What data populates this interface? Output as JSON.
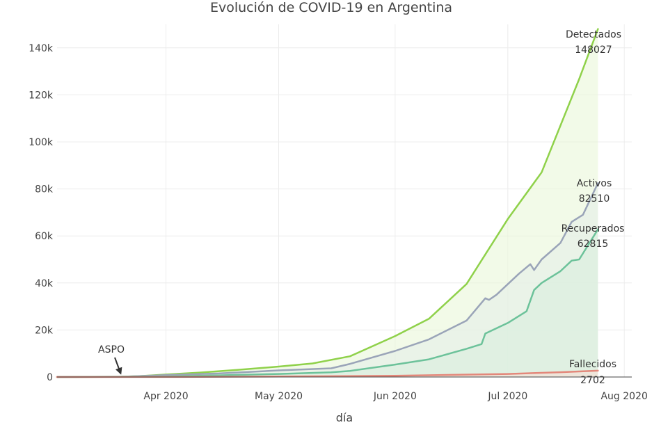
{
  "chart_data": {
    "type": "area",
    "title": "Evolución de COVID-19 en Argentina",
    "xlabel": "día",
    "ylabel": "",
    "xlim": [
      "2020-03-03",
      "2020-08-03"
    ],
    "ylim": [
      0,
      150000
    ],
    "x_ticks": [
      {
        "date": "2020-04-01",
        "label": "Apr 2020"
      },
      {
        "date": "2020-05-01",
        "label": "May 2020"
      },
      {
        "date": "2020-06-01",
        "label": "Jun 2020"
      },
      {
        "date": "2020-07-01",
        "label": "Jul 2020"
      },
      {
        "date": "2020-08-01",
        "label": "Aug 2020"
      }
    ],
    "y_ticks": [
      {
        "value": 0,
        "label": "0"
      },
      {
        "value": 20000,
        "label": "20k"
      },
      {
        "value": 40000,
        "label": "40k"
      },
      {
        "value": 60000,
        "label": "60k"
      },
      {
        "value": 80000,
        "label": "80k"
      },
      {
        "value": 100000,
        "label": "100k"
      },
      {
        "value": 120000,
        "label": "120k"
      },
      {
        "value": 140000,
        "label": "140k"
      }
    ],
    "grid": true,
    "series": [
      {
        "name": "Detectados",
        "color": "#8fd14a",
        "fill": "#eaf6d8",
        "final_value_label": "148027",
        "points": [
          [
            "2020-03-03",
            1
          ],
          [
            "2020-03-10",
            17
          ],
          [
            "2020-03-20",
            128
          ],
          [
            "2020-03-25",
            387
          ],
          [
            "2020-04-01",
            1054
          ],
          [
            "2020-04-10",
            1894
          ],
          [
            "2020-04-20",
            3031
          ],
          [
            "2020-05-01",
            4428
          ],
          [
            "2020-05-10",
            5776
          ],
          [
            "2020-05-20",
            8809
          ],
          [
            "2020-06-01",
            17415
          ],
          [
            "2020-06-10",
            24761
          ],
          [
            "2020-06-20",
            39570
          ],
          [
            "2020-07-01",
            67184
          ],
          [
            "2020-07-10",
            87030
          ],
          [
            "2020-07-20",
            126755
          ],
          [
            "2020-07-25",
            148027
          ]
        ]
      },
      {
        "name": "Activos",
        "color": "#9aa4b8",
        "fill": "#e4eee8",
        "final_value_label": "82510",
        "points": [
          [
            "2020-03-03",
            1
          ],
          [
            "2020-03-20",
            120
          ],
          [
            "2020-04-01",
            800
          ],
          [
            "2020-04-15",
            1500
          ],
          [
            "2020-05-01",
            2800
          ],
          [
            "2020-05-15",
            3700
          ],
          [
            "2020-05-20",
            5600
          ],
          [
            "2020-06-01",
            11100
          ],
          [
            "2020-06-10",
            16000
          ],
          [
            "2020-06-20",
            24000
          ],
          [
            "2020-06-25",
            33500
          ],
          [
            "2020-06-26",
            32800
          ],
          [
            "2020-06-28",
            35000
          ],
          [
            "2020-07-04",
            44000
          ],
          [
            "2020-07-07",
            48000
          ],
          [
            "2020-07-08",
            45500
          ],
          [
            "2020-07-10",
            50000
          ],
          [
            "2020-07-15",
            57000
          ],
          [
            "2020-07-18",
            66000
          ],
          [
            "2020-07-21",
            69000
          ],
          [
            "2020-07-25",
            82510
          ]
        ]
      },
      {
        "name": "Recuperados",
        "color": "#6cc29a",
        "fill": "#d9eedd",
        "final_value_label": "62815",
        "points": [
          [
            "2020-03-03",
            0
          ],
          [
            "2020-04-01",
            240
          ],
          [
            "2020-04-15",
            700
          ],
          [
            "2020-05-01",
            1300
          ],
          [
            "2020-05-15",
            2000
          ],
          [
            "2020-05-20",
            2600
          ],
          [
            "2020-06-01",
            5300
          ],
          [
            "2020-06-10",
            7500
          ],
          [
            "2020-06-20",
            12000
          ],
          [
            "2020-06-24",
            14000
          ],
          [
            "2020-06-25",
            18500
          ],
          [
            "2020-07-01",
            23000
          ],
          [
            "2020-07-06",
            28000
          ],
          [
            "2020-07-08",
            37000
          ],
          [
            "2020-07-10",
            40000
          ],
          [
            "2020-07-15",
            45000
          ],
          [
            "2020-07-18",
            49500
          ],
          [
            "2020-07-20",
            50000
          ],
          [
            "2020-07-25",
            62815
          ]
        ]
      },
      {
        "name": "Fallecidos",
        "color": "#e3877a",
        "fill": "#f6ddd6",
        "final_value_label": "2702",
        "points": [
          [
            "2020-03-03",
            0
          ],
          [
            "2020-04-01",
            27
          ],
          [
            "2020-05-01",
            218
          ],
          [
            "2020-06-01",
            528
          ],
          [
            "2020-07-01",
            1307
          ],
          [
            "2020-07-15",
            2050
          ],
          [
            "2020-07-25",
            2702
          ]
        ]
      }
    ],
    "annotations": [
      {
        "text": "ASPO",
        "date": "2020-03-20",
        "value": 0,
        "arrow": true
      }
    ]
  }
}
